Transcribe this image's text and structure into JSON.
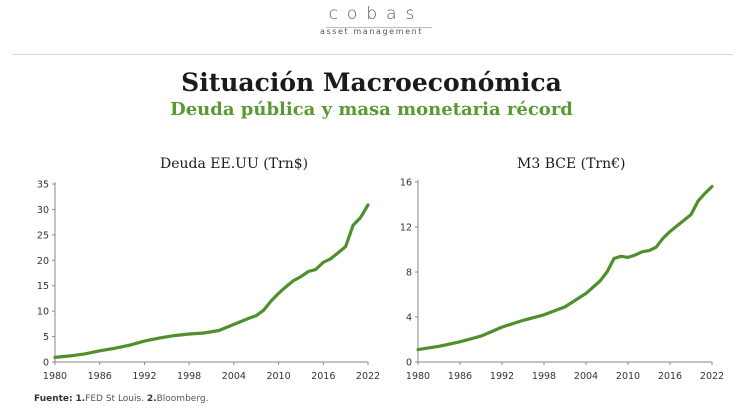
{
  "header": {
    "logo_text": "cobas",
    "logo_subtext": "asset management",
    "title": "Situación Macroeconómica",
    "subtitle": "Deuda pública y masa monetaria récord",
    "accent_color": "#5a9a32"
  },
  "footer": {
    "source_label": "Fuente:",
    "source_1": "1.",
    "source_1_text": "FED St Louis. ",
    "source_2": "2.",
    "source_2_text": "Bloomberg."
  },
  "chart_data": [
    {
      "type": "line",
      "title": "Deuda EE.UU (Trn$)",
      "xlabel": "",
      "ylabel": "",
      "xlim": [
        1980,
        2022
      ],
      "ylim": [
        0,
        35
      ],
      "x_ticks": [
        1980,
        1986,
        1992,
        1998,
        2004,
        2010,
        2016,
        2022
      ],
      "y_ticks": [
        0,
        5,
        10,
        15,
        20,
        25,
        30,
        35
      ],
      "grid": false,
      "series": [
        {
          "name": "Deuda EE.UU",
          "color": "#4f8f2c",
          "x": [
            1980,
            1982,
            1984,
            1986,
            1988,
            1990,
            1992,
            1994,
            1996,
            1998,
            2000,
            2002,
            2004,
            2006,
            2007,
            2008,
            2009,
            2010,
            2011,
            2012,
            2013,
            2014,
            2015,
            2016,
            2017,
            2018,
            2019,
            2020,
            2021,
            2022
          ],
          "values": [
            0.9,
            1.2,
            1.6,
            2.2,
            2.7,
            3.3,
            4.1,
            4.7,
            5.2,
            5.5,
            5.7,
            6.2,
            7.4,
            8.6,
            9.1,
            10.2,
            12.0,
            13.5,
            14.8,
            16.0,
            16.8,
            17.8,
            18.2,
            19.6,
            20.3,
            21.5,
            22.7,
            26.9,
            28.4,
            30.9
          ]
        }
      ]
    },
    {
      "type": "line",
      "title": "M3 BCE (Trn€)",
      "xlabel": "",
      "ylabel": "",
      "xlim": [
        1980,
        2022
      ],
      "ylim": [
        0,
        16
      ],
      "x_ticks": [
        1980,
        1986,
        1992,
        1998,
        2004,
        2010,
        2016,
        2022
      ],
      "y_ticks": [
        0,
        4,
        8,
        12,
        16
      ],
      "grid": false,
      "series": [
        {
          "name": "M3 BCE",
          "color": "#4f8f2c",
          "x": [
            1980,
            1983,
            1986,
            1989,
            1992,
            1995,
            1998,
            2001,
            2004,
            2006,
            2007,
            2008,
            2009,
            2010,
            2011,
            2012,
            2013,
            2014,
            2015,
            2016,
            2017,
            2018,
            2019,
            2020,
            2021,
            2022
          ],
          "values": [
            1.1,
            1.4,
            1.8,
            2.3,
            3.1,
            3.7,
            4.2,
            4.9,
            6.1,
            7.2,
            8.0,
            9.2,
            9.4,
            9.3,
            9.5,
            9.8,
            9.9,
            10.2,
            11.0,
            11.6,
            12.1,
            12.6,
            13.1,
            14.3,
            15.0,
            15.6
          ]
        }
      ]
    }
  ]
}
